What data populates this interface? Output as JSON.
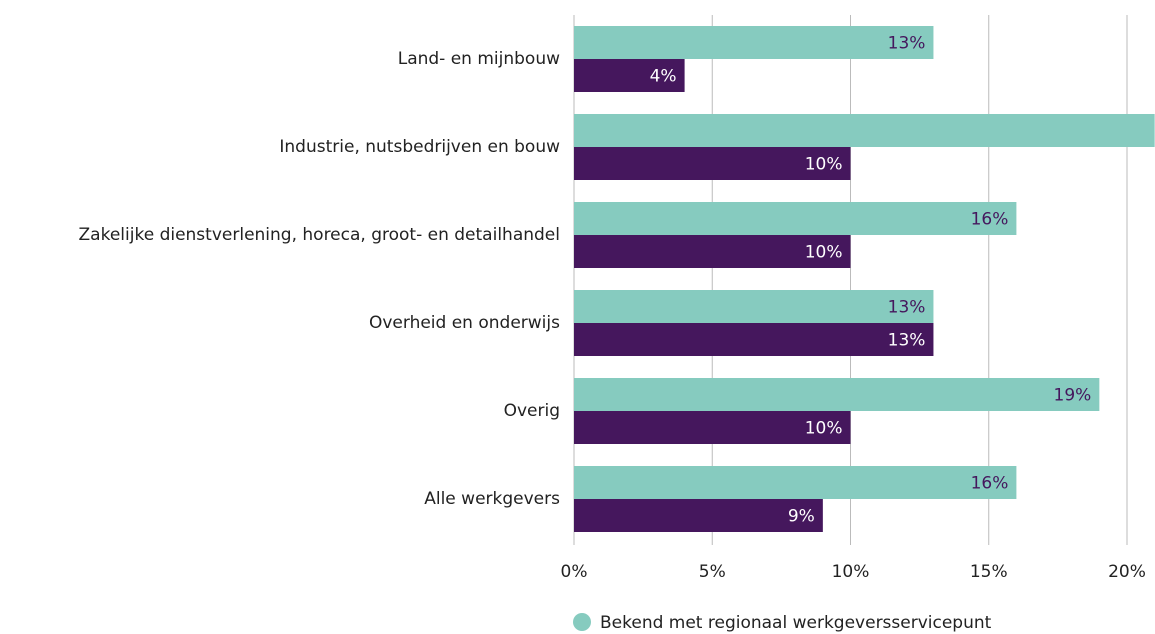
{
  "chart_data": {
    "type": "barh",
    "categories": [
      "Land- en mijnbouw",
      "Industrie, nutsbedrijven en bouw",
      "Zakelijke dienstverlening, horeca, groot- en detailhandel",
      "Overheid en onderwijs",
      "Overig",
      "Alle werkgevers"
    ],
    "series": [
      {
        "name": "Bekend met regionaal werkgeversservicepunt",
        "color": "#86cbbf",
        "values": [
          13,
          21,
          16,
          13,
          19,
          16
        ],
        "value_labels": [
          "13%",
          null,
          "16%",
          "13%",
          "19%",
          "16%"
        ]
      },
      {
        "color": "#45175d",
        "values": [
          4,
          10,
          10,
          13,
          10,
          9
        ],
        "value_labels": [
          "4%",
          "10%",
          "10%",
          "13%",
          "10%",
          "9%"
        ]
      }
    ],
    "xlim": [
      0,
      20
    ],
    "xticks": [
      {
        "value": 0,
        "label": "0%"
      },
      {
        "value": 5,
        "label": "5%"
      },
      {
        "value": 10,
        "label": "10%"
      },
      {
        "value": 15,
        "label": "15%"
      },
      {
        "value": 20,
        "label": "20%"
      }
    ],
    "grid": true
  }
}
